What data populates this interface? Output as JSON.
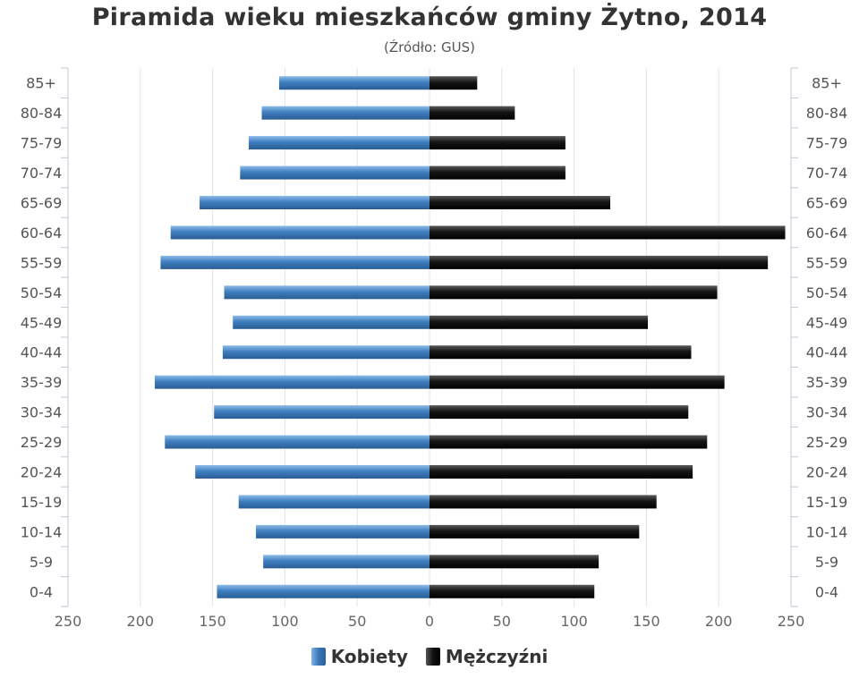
{
  "chart_data": {
    "type": "bar",
    "orientation": "horizontal-pyramid",
    "title": "Piramida wieku mieszkańców gminy Żytno, 2014",
    "subtitle": "(Źródło: GUS)",
    "categories": [
      "85+",
      "80-84",
      "75-79",
      "70-74",
      "65-69",
      "60-64",
      "55-59",
      "50-54",
      "45-49",
      "40-44",
      "35-39",
      "30-34",
      "25-29",
      "20-24",
      "15-19",
      "10-14",
      "5-9",
      "0-4"
    ],
    "series": [
      {
        "name": "Kobiety",
        "side": "left",
        "color": "#3a78b8",
        "values": [
          104,
          116,
          125,
          131,
          159,
          179,
          186,
          142,
          136,
          143,
          190,
          149,
          183,
          162,
          132,
          120,
          115,
          147
        ]
      },
      {
        "name": "Mężczyźni",
        "side": "right",
        "color": "#111111",
        "values": [
          33,
          59,
          94,
          94,
          125,
          246,
          234,
          199,
          151,
          181,
          204,
          179,
          192,
          182,
          157,
          145,
          117,
          114
        ]
      }
    ],
    "x_ticks": [
      "250",
      "200",
      "150",
      "100",
      "50",
      "0",
      "50",
      "100",
      "150",
      "200",
      "250"
    ],
    "xlim": [
      -250,
      250
    ],
    "grid": true,
    "legend_position": "bottom-center"
  }
}
